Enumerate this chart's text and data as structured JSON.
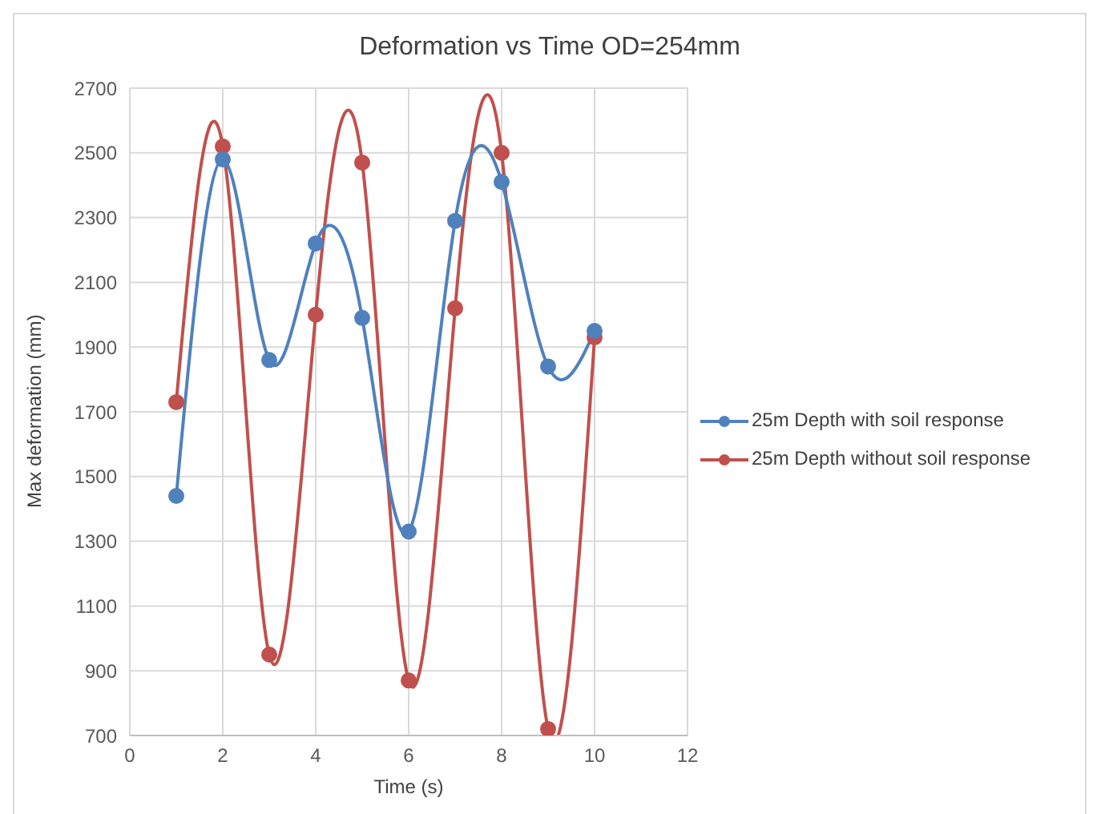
{
  "chart_data": {
    "type": "line",
    "title": "Deformation vs Time OD=254mm",
    "xlabel": "Time (s)",
    "ylabel": "Max deformation (mm)",
    "x": [
      1,
      2,
      3,
      4,
      5,
      6,
      7,
      8,
      9,
      10
    ],
    "series": [
      {
        "name": "25m Depth without soil response",
        "color": "#c0504d",
        "values": [
          1730,
          2520,
          950,
          2000,
          2470,
          870,
          2020,
          2500,
          720,
          1930
        ]
      },
      {
        "name": "25m Depth with soil response",
        "color": "#4f81bd",
        "values": [
          1440,
          2480,
          1860,
          2220,
          1990,
          1330,
          2290,
          2410,
          1840,
          1950
        ]
      }
    ],
    "xlim": [
      0,
      12
    ],
    "xticks": [
      0,
      2,
      4,
      6,
      8,
      10,
      12
    ],
    "ylim": [
      700,
      2700
    ],
    "yticks": [
      700,
      900,
      1100,
      1300,
      1500,
      1700,
      1900,
      2100,
      2300,
      2500,
      2700
    ],
    "grid": true,
    "legend": "right",
    "marker": "circle",
    "line_style": "solid"
  }
}
